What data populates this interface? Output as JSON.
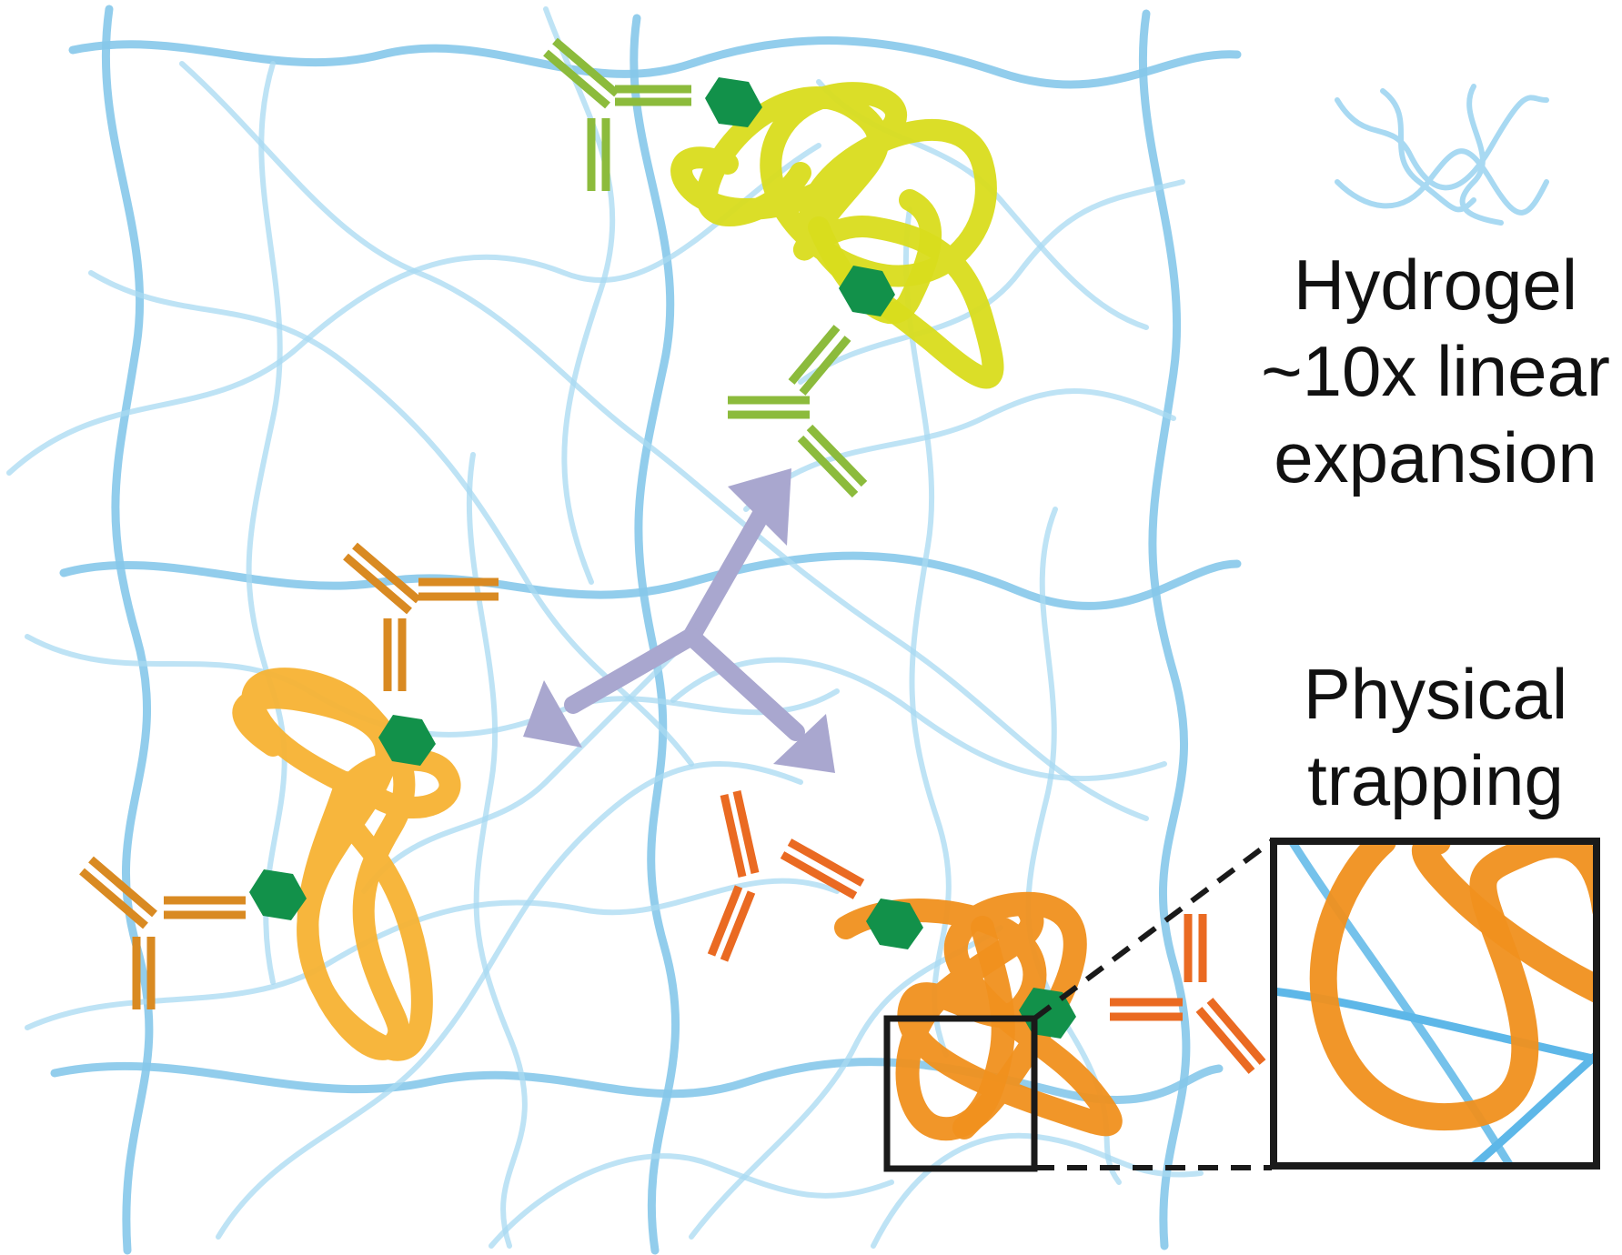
{
  "labels": {
    "hydrogel_line1": "Hydrogel",
    "hydrogel_line2": "~10x linear",
    "hydrogel_line3": "expansion",
    "trapping_line1": "Physical",
    "trapping_line2": "trapping"
  },
  "colors": {
    "hydrogel": "#86c8ea",
    "hydrogel_light": "#a8d9f2",
    "inset_hydrogel": "#5db7e8",
    "expansion_arrows": "#a9a7cf",
    "linker": "#12914a",
    "protein_yellow": "#d9dc1c",
    "protein_light_orange": "#f7b233",
    "protein_orange": "#f0901e",
    "antibody_green": "#8cbb3c",
    "antibody_gold": "#d98a22",
    "antibody_orange": "#ea6a22",
    "inset_border": "#1a1a1a"
  },
  "icons": {
    "hydrogel_mesh": "polymer-network",
    "hydrogel_legend": "hydrogel-strands-icon",
    "antibody": "y-shaped-antibody-icon",
    "linker": "hexagon-anchor-icon",
    "arrows": "three-way-expansion-arrows-icon"
  }
}
